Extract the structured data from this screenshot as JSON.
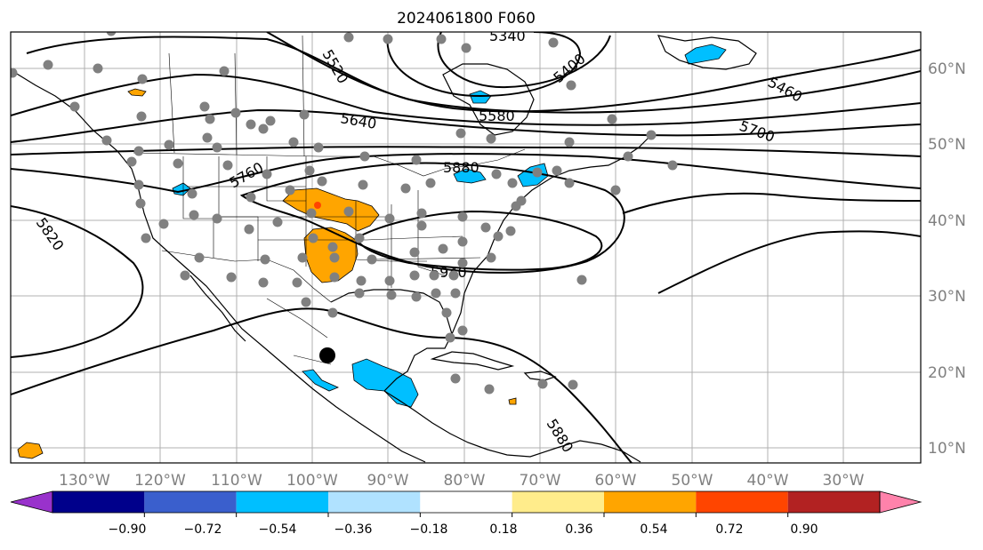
{
  "figure": {
    "title": "2024061800 F060"
  },
  "map": {
    "lon_labels": [
      "130°W",
      "120°W",
      "110°W",
      "100°W",
      "90°W",
      "80°W",
      "70°W",
      "60°W",
      "50°W",
      "40°W",
      "30°W"
    ],
    "lat_labels": [
      "60°N",
      "50°N",
      "40°N",
      "30°N",
      "20°N",
      "10°N"
    ],
    "contour_labels": [
      "5340",
      "5400",
      "5460",
      "5520",
      "5580",
      "5640",
      "5700",
      "5760",
      "5820",
      "5880",
      "5940",
      "5880"
    ],
    "colors": {
      "positive_shading": "#ffa500",
      "negative_shading": "#00bfff",
      "station_dot": "#808080",
      "marker": "#000000"
    }
  },
  "colorbar": {
    "tick_labels": [
      "−0.90",
      "−0.72",
      "−0.54",
      "−0.36",
      "−0.18",
      "0.18",
      "0.36",
      "0.54",
      "0.72",
      "0.90"
    ],
    "colors": [
      "#9932cc",
      "#00008b",
      "#3a5fcd",
      "#00bfff",
      "#b0e2ff",
      "#ffffff",
      "#ffec8b",
      "#ffa500",
      "#ff4500",
      "#b22222",
      "#ff82ab"
    ]
  }
}
